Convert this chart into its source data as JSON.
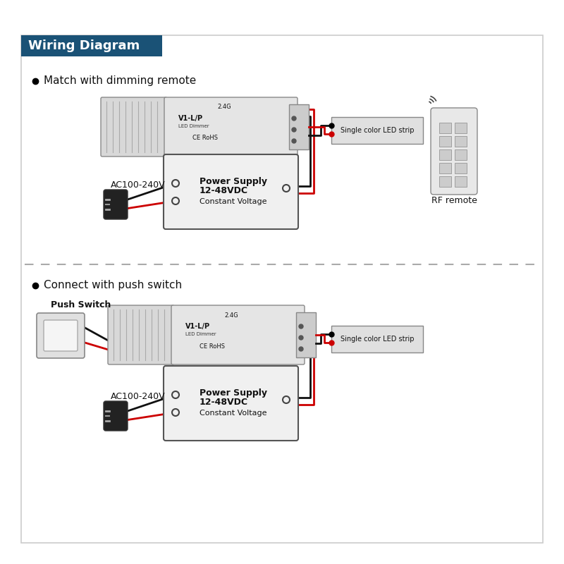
{
  "title": "Wiring Diagram",
  "title_bg": "#1a5276",
  "title_text_color": "#ffffff",
  "bg_color": "#ffffff",
  "border_color": "#cccccc",
  "section1_label": "Match with dimming remote",
  "section2_label": "Connect with push switch",
  "led_strip_label": "Single color LED strip",
  "power_supply_label1": "Power Supply",
  "power_supply_label2": "12-48VDC",
  "power_supply_label3": "Constant Voltage",
  "ac_label": "AC100-240V",
  "rf_remote_label": "RF remote",
  "push_switch_label": "Push Switch",
  "dimmer_label1": "V1-L/P",
  "dimmer_label2": "LED Dimmer",
  "dimmer_label3": "CE RoHS",
  "dimmer_label4": "2.4G",
  "line_color_black": "#111111",
  "line_color_red": "#cc0000",
  "box_color_light": "#e8e8e8",
  "box_color_mid": "#d0d0d0",
  "box_color_dark": "#555555"
}
